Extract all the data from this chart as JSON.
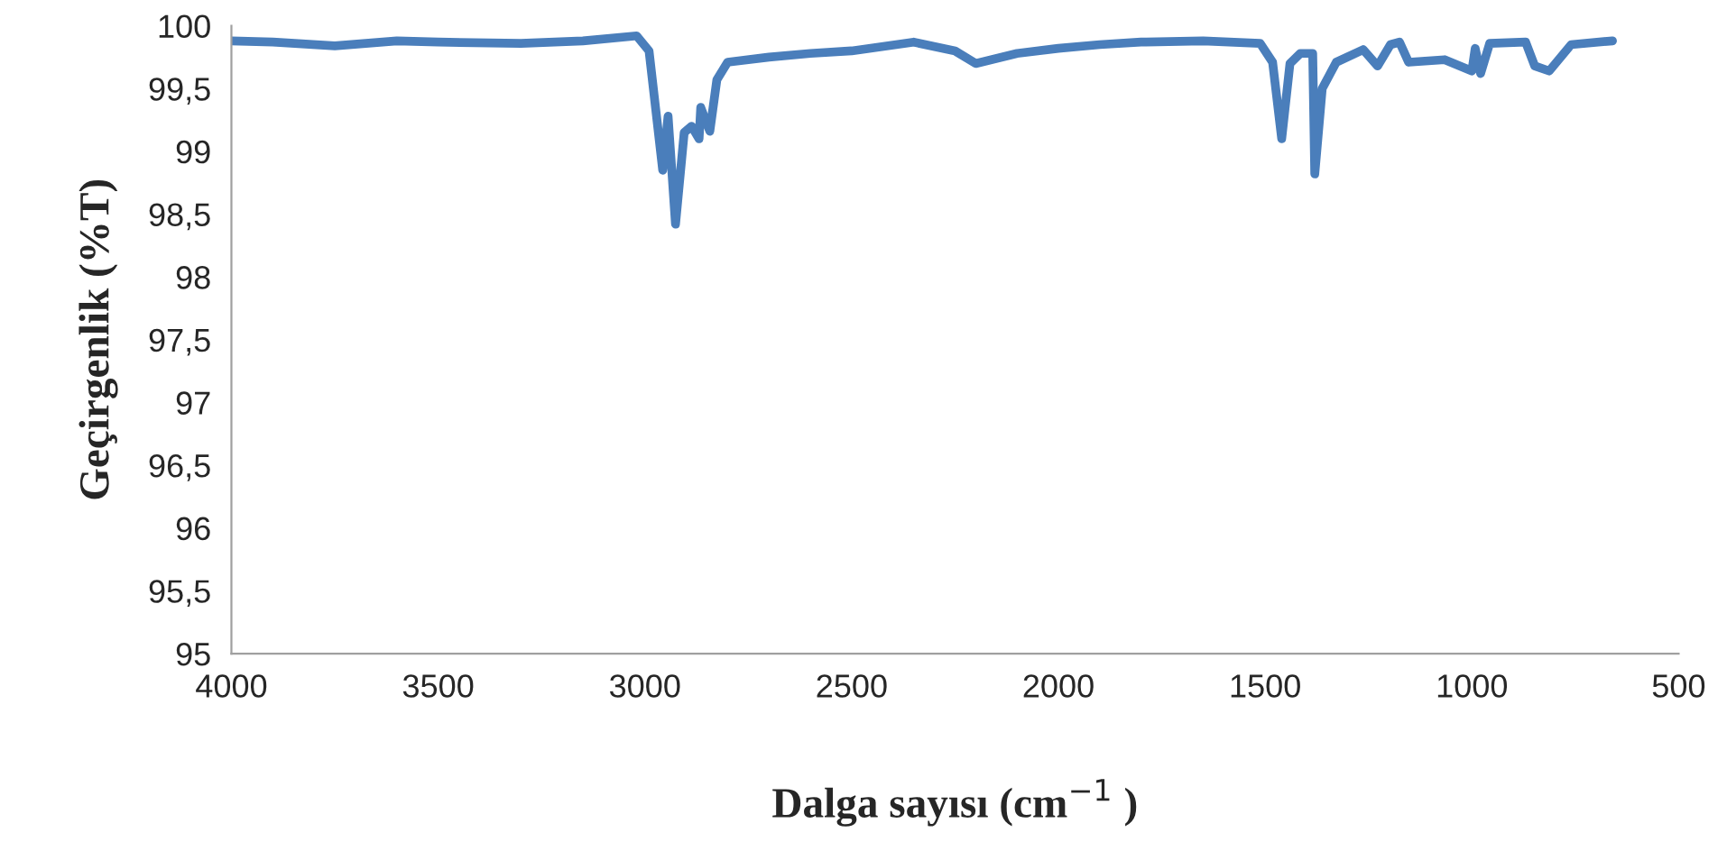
{
  "chart_data": {
    "type": "line",
    "xlabel": "Dalga sayısı (cm$^{−1}$ )",
    "ylabel": "Geçirgenlik (%T)",
    "x": [
      4000,
      3900,
      3750,
      3600,
      3500,
      3300,
      3150,
      3020,
      2990,
      2957,
      2944,
      2926,
      2905,
      2887,
      2869,
      2865,
      2843,
      2826,
      2800,
      2700,
      2600,
      2500,
      2350,
      2250,
      2200,
      2100,
      2000,
      1900,
      1800,
      1650,
      1512,
      1482,
      1460,
      1440,
      1415,
      1385,
      1380,
      1362,
      1328,
      1263,
      1228,
      1197,
      1175,
      1153,
      1066,
      1000,
      992,
      979,
      957,
      870,
      848,
      813,
      760,
      660
    ],
    "series": [
      {
        "color": "#4a7ebb",
        "values": [
          99.88,
          99.87,
          99.84,
          99.88,
          99.87,
          99.86,
          99.88,
          99.92,
          99.8,
          98.85,
          99.28,
          98.42,
          99.15,
          99.2,
          99.1,
          99.35,
          99.16,
          99.57,
          99.71,
          99.75,
          99.78,
          99.8,
          99.87,
          99.8,
          99.7,
          99.78,
          99.82,
          99.85,
          99.87,
          99.88,
          99.86,
          99.71,
          99.1,
          99.7,
          99.78,
          99.78,
          98.82,
          99.5,
          99.71,
          99.81,
          99.68,
          99.85,
          99.87,
          99.71,
          99.73,
          99.64,
          99.82,
          99.62,
          99.86,
          99.87,
          99.68,
          99.64,
          99.85,
          99.88
        ]
      }
    ],
    "xlim": [
      4000,
      500
    ],
    "xticks": [
      4000,
      3500,
      3000,
      2500,
      2000,
      1500,
      1000,
      500
    ],
    "ylim": [
      95,
      100
    ],
    "yticks": [
      {
        "value": 95,
        "label": "95"
      },
      {
        "value": 95.5,
        "label": "95,5"
      },
      {
        "value": 96,
        "label": "96"
      },
      {
        "value": 96.5,
        "label": "96,5"
      },
      {
        "value": 97,
        "label": "97"
      },
      {
        "value": 97.5,
        "label": "97,5"
      },
      {
        "value": 98,
        "label": "98"
      },
      {
        "value": 98.5,
        "label": "98,5"
      },
      {
        "value": 99,
        "label": "99"
      },
      {
        "value": 99.5,
        "label": "99,5"
      },
      {
        "value": 100,
        "label": "100"
      }
    ],
    "grid": false,
    "line_style": "solid",
    "marker": "none"
  }
}
